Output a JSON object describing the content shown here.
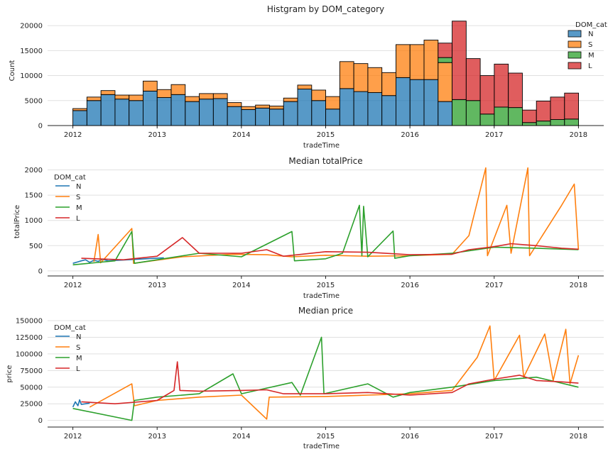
{
  "colors": {
    "N": "#1f77b4",
    "S": "#ff7f0e",
    "M": "#2ca02c",
    "L": "#d62728"
  },
  "chart_data": [
    {
      "type": "bar",
      "stacked": true,
      "title": "Histgram by DOM_category",
      "xlabel": "tradeTime",
      "ylabel": "Count",
      "xlim": [
        2011.7,
        2018.3
      ],
      "ylim": [
        0,
        22000
      ],
      "xticks": [
        "2012",
        "2013",
        "2014",
        "2015",
        "2016",
        "2017",
        "2018"
      ],
      "yticks": [
        "0",
        "5000",
        "10000",
        "15000",
        "20000"
      ],
      "grid": "horizontal",
      "legend": {
        "title": "DOM_cat",
        "position": "top-right",
        "entries": [
          "N",
          "S",
          "M",
          "L"
        ]
      },
      "bins_start": 2012.0,
      "bin_width": 0.1667,
      "series": [
        {
          "name": "N",
          "values": [
            3000,
            5000,
            6200,
            5300,
            5000,
            6900,
            5600,
            6200,
            4800,
            5300,
            5400,
            3800,
            3200,
            3500,
            3300,
            4800,
            7300,
            5000,
            3300,
            7400,
            6800,
            6600,
            6000,
            9600,
            9200,
            9200,
            4800,
            0,
            0,
            0,
            0,
            0,
            0,
            0,
            0,
            0,
            0
          ]
        },
        {
          "name": "S",
          "values": [
            400,
            700,
            800,
            800,
            1100,
            2000,
            1600,
            2000,
            1000,
            1100,
            1000,
            800,
            600,
            600,
            600,
            700,
            800,
            2100,
            2500,
            5400,
            5600,
            5000,
            4600,
            6600,
            7000,
            7900,
            7800,
            0,
            0,
            0,
            0,
            0,
            0,
            0,
            0,
            0,
            0
          ]
        },
        {
          "name": "M",
          "values": [
            0,
            0,
            0,
            0,
            0,
            0,
            0,
            0,
            0,
            0,
            0,
            0,
            0,
            0,
            0,
            0,
            0,
            0,
            0,
            0,
            0,
            0,
            0,
            0,
            0,
            0,
            1000,
            5200,
            5000,
            2300,
            3700,
            3600,
            600,
            900,
            1200,
            1300,
            0
          ]
        },
        {
          "name": "L",
          "values": [
            0,
            0,
            0,
            0,
            0,
            0,
            0,
            0,
            0,
            0,
            0,
            0,
            0,
            0,
            0,
            0,
            0,
            0,
            0,
            0,
            0,
            0,
            0,
            0,
            0,
            0,
            2900,
            15700,
            8400,
            7700,
            8600,
            6900,
            2500,
            4000,
            4500,
            5200,
            0
          ]
        }
      ]
    },
    {
      "type": "line",
      "title": "Median totalPrice",
      "xlabel": "tradeTime",
      "ylabel": "totalPrice",
      "xlim": [
        2011.7,
        2018.3
      ],
      "ylim": [
        -100,
        2050
      ],
      "xticks": [
        "2012",
        "2013",
        "2014",
        "2015",
        "2016",
        "2017",
        "2018"
      ],
      "yticks": [
        "0",
        "500",
        "1000",
        "1500",
        "2000"
      ],
      "grid": "horizontal",
      "legend": {
        "title": "DOM_cat",
        "position": "top-left",
        "entries": [
          "N",
          "S",
          "M",
          "L"
        ]
      },
      "series": [
        {
          "name": "N",
          "points": [
            [
              2012.0,
              150
            ],
            [
              2012.06,
              180
            ],
            [
              2012.1,
              200
            ],
            [
              2012.15,
              220
            ],
            [
              2012.2,
              170
            ],
            [
              2012.25,
              210
            ],
            [
              2012.3,
              190
            ],
            [
              2012.35,
              230
            ],
            [
              2012.42,
              200
            ],
            [
              2013.08,
              260
            ]
          ]
        },
        {
          "name": "S",
          "points": [
            [
              2012.25,
              180
            ],
            [
              2012.3,
              720
            ],
            [
              2012.33,
              160
            ],
            [
              2012.7,
              840
            ],
            [
              2012.72,
              150
            ],
            [
              2013.3,
              280
            ],
            [
              2013.9,
              330
            ],
            [
              2014.3,
              320
            ],
            [
              2014.6,
              280
            ],
            [
              2015.0,
              310
            ],
            [
              2015.5,
              290
            ],
            [
              2016.0,
              300
            ],
            [
              2016.5,
              330
            ],
            [
              2016.7,
              700
            ],
            [
              2016.9,
              2040
            ],
            [
              2016.92,
              300
            ],
            [
              2017.15,
              1300
            ],
            [
              2017.2,
              350
            ],
            [
              2017.4,
              2040
            ],
            [
              2017.42,
              300
            ],
            [
              2017.8,
              1300
            ],
            [
              2017.95,
              1720
            ],
            [
              2018.0,
              420
            ]
          ]
        },
        {
          "name": "M",
          "points": [
            [
              2012.0,
              120
            ],
            [
              2012.5,
              200
            ],
            [
              2012.7,
              780
            ],
            [
              2012.73,
              150
            ],
            [
              2013.0,
              220
            ],
            [
              2013.5,
              350
            ],
            [
              2014.0,
              280
            ],
            [
              2014.6,
              780
            ],
            [
              2014.63,
              200
            ],
            [
              2015.0,
              240
            ],
            [
              2015.2,
              350
            ],
            [
              2015.4,
              1300
            ],
            [
              2015.43,
              300
            ],
            [
              2015.45,
              1280
            ],
            [
              2015.5,
              280
            ],
            [
              2015.8,
              790
            ],
            [
              2015.82,
              250
            ],
            [
              2016.0,
              300
            ],
            [
              2016.5,
              350
            ],
            [
              2017.0,
              470
            ],
            [
              2017.5,
              450
            ],
            [
              2018.0,
              420
            ]
          ]
        },
        {
          "name": "L",
          "points": [
            [
              2012.1,
              250
            ],
            [
              2012.6,
              220
            ],
            [
              2013.0,
              290
            ],
            [
              2013.3,
              660
            ],
            [
              2013.5,
              350
            ],
            [
              2014.0,
              350
            ],
            [
              2014.3,
              420
            ],
            [
              2014.5,
              290
            ],
            [
              2015.0,
              380
            ],
            [
              2015.5,
              370
            ],
            [
              2016.0,
              320
            ],
            [
              2016.5,
              330
            ],
            [
              2016.7,
              420
            ],
            [
              2017.0,
              480
            ],
            [
              2017.2,
              540
            ],
            [
              2017.5,
              500
            ],
            [
              2017.8,
              450
            ],
            [
              2018.0,
              430
            ]
          ]
        }
      ]
    },
    {
      "type": "line",
      "title": "Median price",
      "xlabel": "tradeTime",
      "ylabel": "price",
      "xlim": [
        2011.7,
        2018.3
      ],
      "ylim": [
        -10000,
        150000
      ],
      "xticks": [
        "2012",
        "2013",
        "2014",
        "2015",
        "2016",
        "2017",
        "2018"
      ],
      "yticks": [
        "0",
        "25000",
        "50000",
        "75000",
        "100000",
        "125000",
        "150000"
      ],
      "grid": "horizontal",
      "legend": {
        "title": "DOM_cat",
        "position": "top-left",
        "entries": [
          "N",
          "S",
          "M",
          "L"
        ]
      },
      "series": [
        {
          "name": "N",
          "points": [
            [
              2012.0,
              20000
            ],
            [
              2012.03,
              28000
            ],
            [
              2012.06,
              22000
            ],
            [
              2012.08,
              31000
            ],
            [
              2012.1,
              24000
            ],
            [
              2012.2,
              26000
            ]
          ]
        },
        {
          "name": "S",
          "points": [
            [
              2012.2,
              20000
            ],
            [
              2012.7,
              55000
            ],
            [
              2012.73,
              22000
            ],
            [
              2013.0,
              30000
            ],
            [
              2013.5,
              35000
            ],
            [
              2014.0,
              38000
            ],
            [
              2014.3,
              2000
            ],
            [
              2014.33,
              35000
            ],
            [
              2015.0,
              36000
            ],
            [
              2015.5,
              38000
            ],
            [
              2016.0,
              40000
            ],
            [
              2016.5,
              45000
            ],
            [
              2016.8,
              95000
            ],
            [
              2016.95,
              142000
            ],
            [
              2017.0,
              60000
            ],
            [
              2017.3,
              128000
            ],
            [
              2017.35,
              65000
            ],
            [
              2017.6,
              130000
            ],
            [
              2017.7,
              60000
            ],
            [
              2017.85,
              137000
            ],
            [
              2017.9,
              55000
            ],
            [
              2018.0,
              98000
            ]
          ]
        },
        {
          "name": "M",
          "points": [
            [
              2012.0,
              18000
            ],
            [
              2012.7,
              0
            ],
            [
              2012.73,
              30000
            ],
            [
              2013.0,
              35000
            ],
            [
              2013.5,
              40000
            ],
            [
              2013.9,
              70000
            ],
            [
              2014.0,
              40000
            ],
            [
              2014.6,
              57000
            ],
            [
              2014.7,
              38000
            ],
            [
              2014.95,
              125000
            ],
            [
              2014.98,
              40000
            ],
            [
              2015.5,
              55000
            ],
            [
              2015.8,
              35000
            ],
            [
              2016.0,
              42000
            ],
            [
              2016.5,
              50000
            ],
            [
              2017.0,
              60000
            ],
            [
              2017.5,
              65000
            ],
            [
              2018.0,
              50000
            ]
          ]
        },
        {
          "name": "L",
          "points": [
            [
              2012.1,
              28000
            ],
            [
              2012.5,
              25000
            ],
            [
              2013.0,
              30000
            ],
            [
              2013.2,
              45000
            ],
            [
              2013.24,
              88000
            ],
            [
              2013.27,
              45000
            ],
            [
              2013.5,
              44000
            ],
            [
              2014.0,
              45000
            ],
            [
              2014.3,
              46000
            ],
            [
              2014.5,
              40000
            ],
            [
              2015.0,
              40000
            ],
            [
              2015.5,
              42000
            ],
            [
              2016.0,
              38000
            ],
            [
              2016.5,
              42000
            ],
            [
              2016.7,
              55000
            ],
            [
              2017.0,
              62000
            ],
            [
              2017.3,
              68000
            ],
            [
              2017.5,
              60000
            ],
            [
              2017.8,
              58000
            ],
            [
              2018.0,
              56000
            ]
          ]
        }
      ]
    }
  ]
}
